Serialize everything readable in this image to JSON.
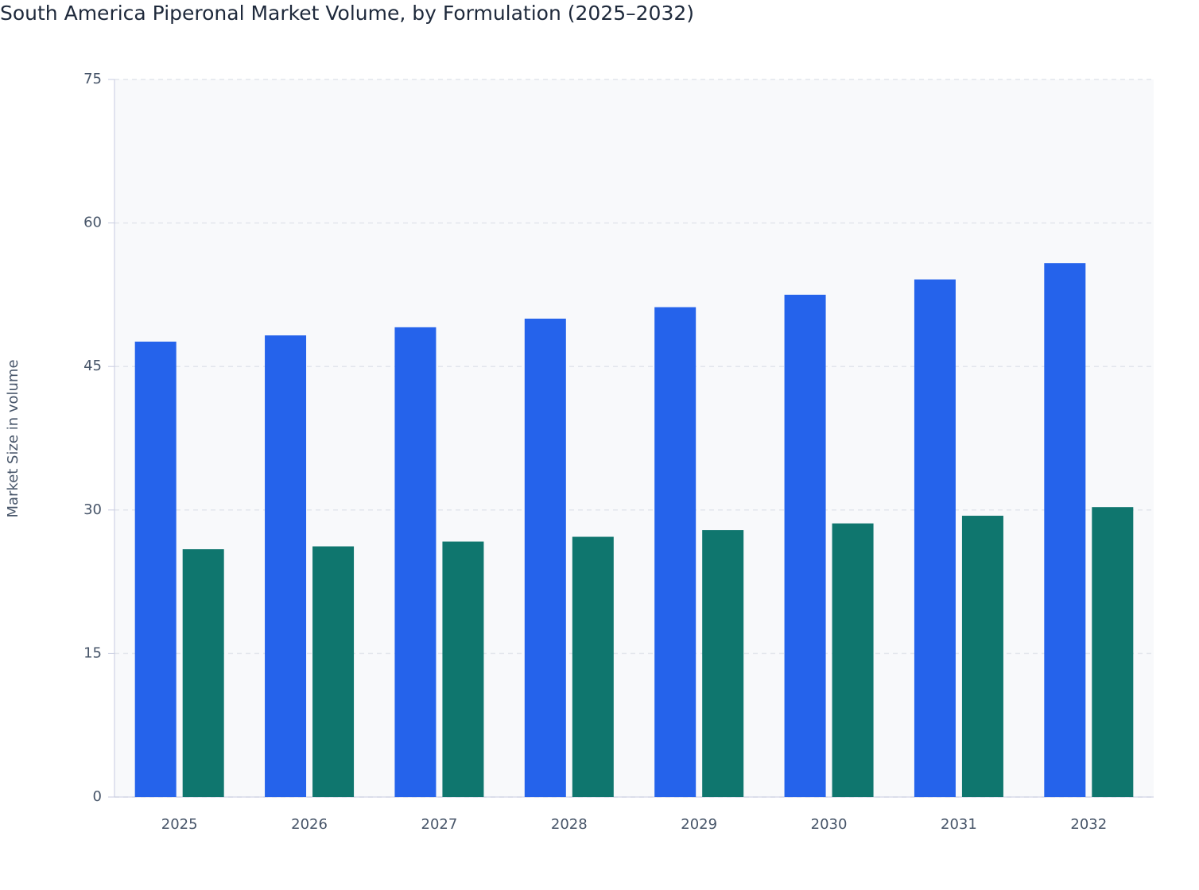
{
  "chart_data": {
    "type": "bar",
    "title": "South America Piperonal Market Volume, by Formulation (2025–2032)",
    "y_label": "Market Size in volume",
    "categories": [
      "2025",
      "2026",
      "2027",
      "2028",
      "2029",
      "2030",
      "2031",
      "2032"
    ],
    "series": [
      {
        "color": "#2563eb",
        "values": [
          47.6,
          48.25,
          49.1,
          50.0,
          51.2,
          52.5,
          54.1,
          55.8
        ]
      },
      {
        "color": "#0f766e",
        "values": [
          25.9,
          26.2,
          26.7,
          27.2,
          27.9,
          28.6,
          29.4,
          30.3
        ]
      }
    ],
    "ylim": [
      0,
      75
    ],
    "yticks": [
      0,
      15,
      30,
      45,
      60,
      75
    ],
    "grid": true
  }
}
